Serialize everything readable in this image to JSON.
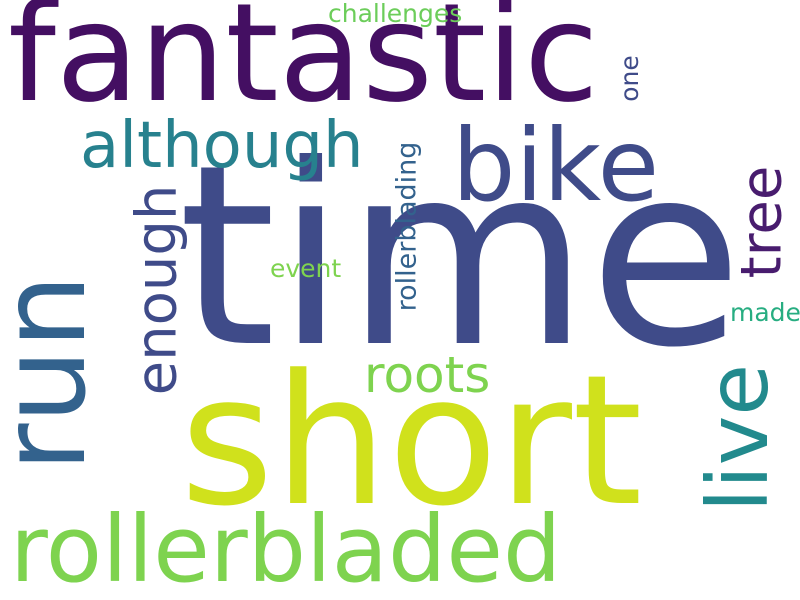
{
  "words": [
    {
      "text": "fantastic",
      "color": "#440f62"
    },
    {
      "text": "time",
      "color": "#3f4b89"
    },
    {
      "text": "short",
      "color": "#d0e11c"
    },
    {
      "text": "rollerbladed",
      "color": "#7ed34f"
    },
    {
      "text": "run",
      "color": "#33628d"
    },
    {
      "text": "bike",
      "color": "#3f4b89"
    },
    {
      "text": "although",
      "color": "#27818e"
    },
    {
      "text": "live",
      "color": "#228a8d"
    },
    {
      "text": "tree",
      "color": "#481c6e"
    },
    {
      "text": "enough",
      "color": "#3f4b89"
    },
    {
      "text": "roots",
      "color": "#7ed34f"
    },
    {
      "text": "rollerblading",
      "color": "#33628d"
    },
    {
      "text": "challenges",
      "color": "#6ccd5a"
    },
    {
      "text": "one",
      "color": "#3f4b89"
    },
    {
      "text": "event",
      "color": "#7ed34f"
    },
    {
      "text": "made",
      "color": "#27ad81"
    }
  ]
}
